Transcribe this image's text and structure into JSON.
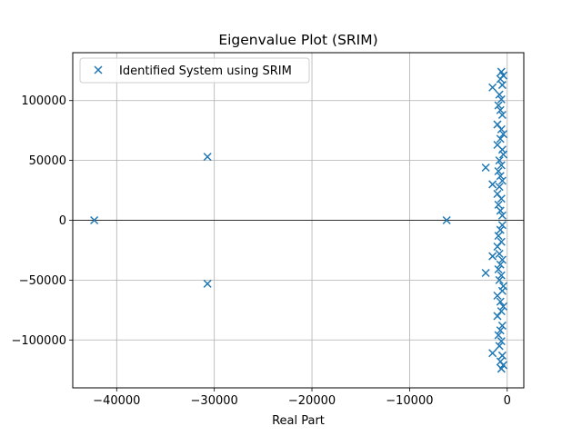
{
  "chart_data": {
    "type": "scatter",
    "title": "Eigenvalue Plot (SRIM)",
    "xlabel": "Real Part",
    "ylabel": "",
    "xlim": [
      -44500,
      1700
    ],
    "ylim": [
      -140000,
      140000
    ],
    "xticks": [
      -40000,
      -30000,
      -20000,
      -10000,
      0
    ],
    "xtick_labels": [
      "−40000",
      "−30000",
      "−20000",
      "−10000",
      "0"
    ],
    "yticks": [
      -100000,
      -50000,
      0,
      50000,
      100000
    ],
    "ytick_labels": [
      "−100000",
      "−50000",
      "0",
      "50000",
      "100000"
    ],
    "grid": true,
    "zero_line": true,
    "legend_position": "top-left",
    "series": [
      {
        "name": "Identified System using SRIM",
        "color": "#1f77b4",
        "marker": "x",
        "points": [
          [
            -42300,
            0
          ],
          [
            -30700,
            53000
          ],
          [
            -30700,
            -53000
          ],
          [
            -6200,
            0
          ],
          [
            -2200,
            44000
          ],
          [
            -2200,
            -44000
          ],
          [
            -1500,
            111000
          ],
          [
            -1500,
            -111000
          ],
          [
            -1500,
            30000
          ],
          [
            -1500,
            -30000
          ],
          [
            -600,
            124000
          ],
          [
            -600,
            -124000
          ],
          [
            -400,
            121000
          ],
          [
            -400,
            -121000
          ],
          [
            -700,
            118000
          ],
          [
            -700,
            -118000
          ],
          [
            -500,
            113000
          ],
          [
            -500,
            -113000
          ],
          [
            -800,
            105000
          ],
          [
            -800,
            -105000
          ],
          [
            -600,
            101000
          ],
          [
            -600,
            -101000
          ],
          [
            -900,
            96000
          ],
          [
            -900,
            -96000
          ],
          [
            -700,
            92000
          ],
          [
            -700,
            -92000
          ],
          [
            -500,
            88000
          ],
          [
            -500,
            -88000
          ],
          [
            -1000,
            80000
          ],
          [
            -1000,
            -80000
          ],
          [
            -600,
            76000
          ],
          [
            -600,
            -76000
          ],
          [
            -400,
            72000
          ],
          [
            -400,
            -72000
          ],
          [
            -700,
            68000
          ],
          [
            -700,
            -68000
          ],
          [
            -1000,
            63000
          ],
          [
            -1000,
            -63000
          ],
          [
            -500,
            59000
          ],
          [
            -500,
            -59000
          ],
          [
            -400,
            55000
          ],
          [
            -400,
            -55000
          ],
          [
            -800,
            50000
          ],
          [
            -800,
            -50000
          ],
          [
            -600,
            46000
          ],
          [
            -600,
            -46000
          ],
          [
            -900,
            41000
          ],
          [
            -900,
            -41000
          ],
          [
            -700,
            37000
          ],
          [
            -700,
            -37000
          ],
          [
            -500,
            33000
          ],
          [
            -500,
            -33000
          ],
          [
            -800,
            28000
          ],
          [
            -800,
            -28000
          ],
          [
            -1000,
            22000
          ],
          [
            -1000,
            -22000
          ],
          [
            -600,
            18000
          ],
          [
            -600,
            -18000
          ],
          [
            -900,
            13000
          ],
          [
            -900,
            -13000
          ],
          [
            -700,
            8000
          ],
          [
            -700,
            -8000
          ],
          [
            -500,
            4000
          ],
          [
            -500,
            -4000
          ]
        ]
      }
    ]
  }
}
